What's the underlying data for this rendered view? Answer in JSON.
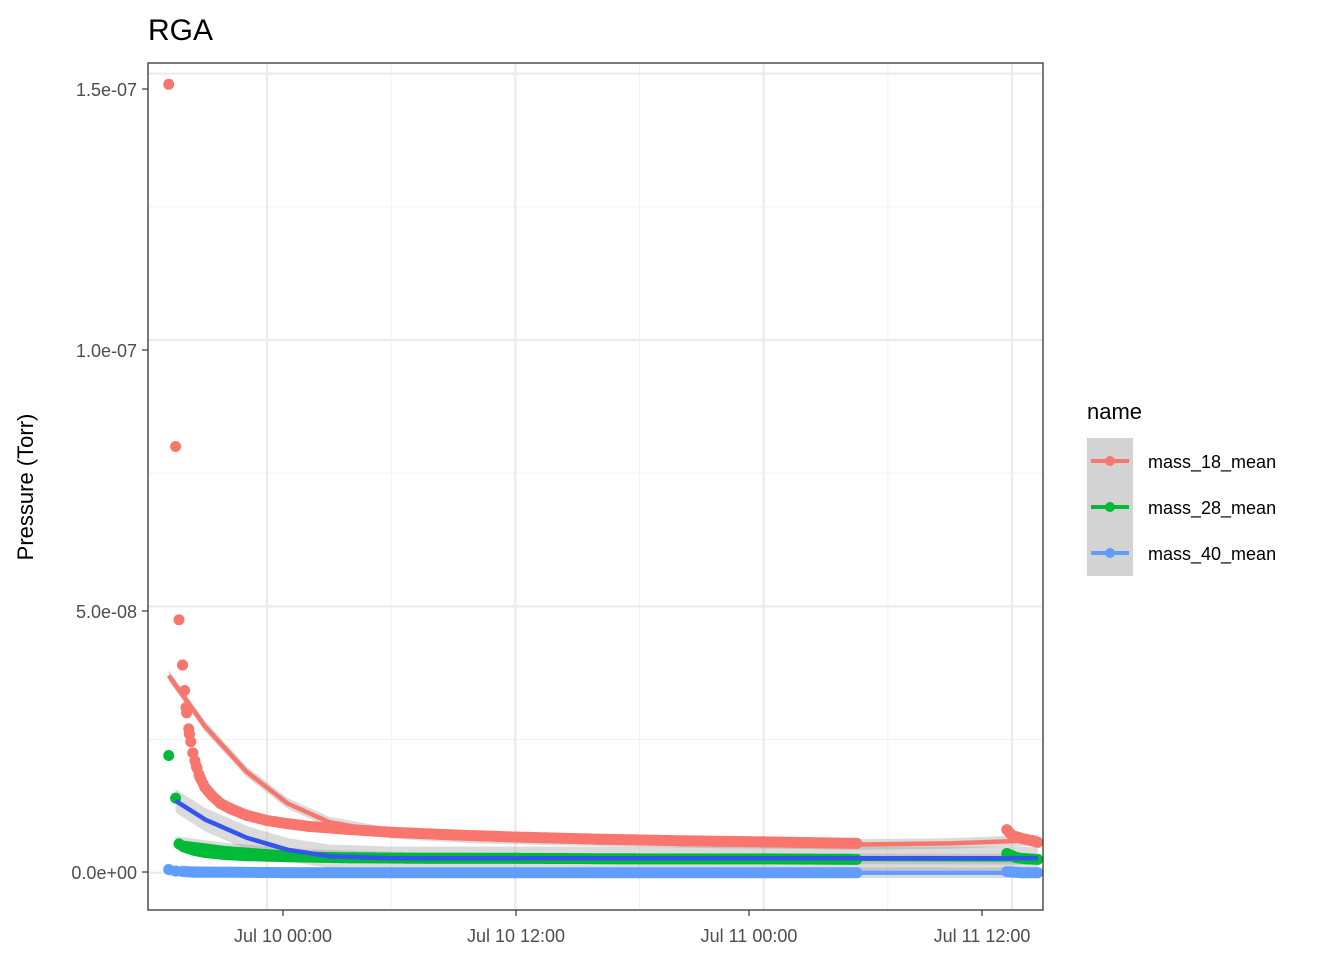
{
  "chart_data": {
    "type": "scatter",
    "title": "RGA",
    "xlabel": "",
    "ylabel": "Pressure (Torr)",
    "x_axis": {
      "type": "datetime",
      "range": [
        "2024-07-09 18:15",
        "2024-07-11 13:30"
      ],
      "ticks": [
        "Jul 10 00:00",
        "Jul 10 12:00",
        "Jul 11 00:00",
        "Jul 11 12:00"
      ]
    },
    "y_axis": {
      "range": [
        -7e-09,
        1.52e-07
      ],
      "ticks": [
        "0.0e+00",
        "5.0e-08",
        "1.0e-07",
        "1.5e-07"
      ]
    },
    "grid": true,
    "legend": {
      "title": "name",
      "position": "right"
    },
    "series": [
      {
        "name": "mass_18_mean",
        "color": "#F8766D",
        "points": [
          [
            "2024-07-09 19:15",
            1.48e-07
          ],
          [
            "2024-07-09 19:35",
            8e-08
          ],
          [
            "2024-07-09 19:45",
            4.75e-08
          ],
          [
            "2024-07-09 19:55",
            3.9e-08
          ],
          [
            "2024-07-09 20:05",
            3.1e-08
          ],
          [
            "2024-07-09 20:15",
            2.6e-08
          ],
          [
            "2024-07-09 20:25",
            2.25e-08
          ],
          [
            "2024-07-09 20:35",
            2e-08
          ],
          [
            "2024-07-09 20:45",
            1.8e-08
          ],
          [
            "2024-07-09 21:00",
            1.6e-08
          ],
          [
            "2024-07-09 21:20",
            1.45e-08
          ],
          [
            "2024-07-09 21:45",
            1.3e-08
          ],
          [
            "2024-07-09 22:15",
            1.2e-08
          ],
          [
            "2024-07-09 23:00",
            1.08e-08
          ],
          [
            "2024-07-10 00:00",
            9.8e-09
          ],
          [
            "2024-07-10 01:00",
            9.2e-09
          ],
          [
            "2024-07-10 02:00",
            8.7e-09
          ],
          [
            "2024-07-10 04:00",
            8.1e-09
          ],
          [
            "2024-07-10 06:00",
            7.6e-09
          ],
          [
            "2024-07-10 09:00",
            7.1e-09
          ],
          [
            "2024-07-10 12:00",
            6.7e-09
          ],
          [
            "2024-07-10 16:00",
            6.3e-09
          ],
          [
            "2024-07-10 20:00",
            6e-09
          ],
          [
            "2024-07-11 00:00",
            5.8e-09
          ],
          [
            "2024-07-11 04:30",
            5.5e-09
          ],
          [
            "2024-07-11 11:45",
            8.1e-09
          ],
          [
            "2024-07-11 12:00",
            7e-09
          ],
          [
            "2024-07-11 12:30",
            6.4e-09
          ],
          [
            "2024-07-11 13:00",
            6e-09
          ],
          [
            "2024-07-11 13:15",
            5.7e-09
          ]
        ],
        "trend": [
          [
            "2024-07-09 19:15",
            3.7e-08
          ],
          [
            "2024-07-09 21:00",
            2.75e-08
          ],
          [
            "2024-07-09 23:00",
            1.9e-08
          ],
          [
            "2024-07-10 01:00",
            1.3e-08
          ],
          [
            "2024-07-10 03:00",
            9.5e-09
          ],
          [
            "2024-07-10 06:00",
            7.4e-09
          ],
          [
            "2024-07-10 10:00",
            6.5e-09
          ],
          [
            "2024-07-10 16:00",
            6e-09
          ],
          [
            "2024-07-10 22:00",
            5.6e-09
          ],
          [
            "2024-07-11 04:30",
            5.3e-09
          ],
          [
            "2024-07-11 09:00",
            5.5e-09
          ],
          [
            "2024-07-11 13:15",
            6.1e-09
          ]
        ]
      },
      {
        "name": "mass_28_mean",
        "color": "#00BA38",
        "points": [
          [
            "2024-07-09 19:15",
            2.2e-08
          ],
          [
            "2024-07-09 19:35",
            1.4e-08
          ],
          [
            "2024-07-09 19:45",
            5.4e-09
          ],
          [
            "2024-07-09 20:00",
            4.8e-09
          ],
          [
            "2024-07-09 20:30",
            4.2e-09
          ],
          [
            "2024-07-09 21:00",
            3.8e-09
          ],
          [
            "2024-07-09 22:00",
            3.4e-09
          ],
          [
            "2024-07-09 23:00",
            3.2e-09
          ],
          [
            "2024-07-10 01:00",
            3e-09
          ],
          [
            "2024-07-10 04:00",
            2.8e-09
          ],
          [
            "2024-07-10 08:00",
            2.7e-09
          ],
          [
            "2024-07-10 12:00",
            2.7e-09
          ],
          [
            "2024-07-10 18:00",
            2.6e-09
          ],
          [
            "2024-07-11 00:00",
            2.6e-09
          ],
          [
            "2024-07-11 04:30",
            2.5e-09
          ],
          [
            "2024-07-11 11:45",
            3.6e-09
          ],
          [
            "2024-07-11 12:15",
            2.8e-09
          ],
          [
            "2024-07-11 12:45",
            2.6e-09
          ],
          [
            "2024-07-11 13:15",
            2.5e-09
          ]
        ],
        "trend": [
          [
            "2024-07-09 19:35",
            5.8e-09
          ],
          [
            "2024-07-09 22:00",
            4.6e-09
          ],
          [
            "2024-07-10 02:00",
            3.4e-09
          ],
          [
            "2024-07-10 06:00",
            2.9e-09
          ],
          [
            "2024-07-10 12:00",
            2.7e-09
          ],
          [
            "2024-07-10 20:00",
            2.6e-09
          ],
          [
            "2024-07-11 04:30",
            2.6e-09
          ],
          [
            "2024-07-11 13:15",
            2.5e-09
          ]
        ]
      },
      {
        "name": "mass_40_mean",
        "color": "#619CFF",
        "points": [
          [
            "2024-07-09 19:15",
            6e-10
          ],
          [
            "2024-07-09 19:35",
            3e-10
          ],
          [
            "2024-07-09 20:30",
            1e-10
          ],
          [
            "2024-07-09 22:00",
            1e-10
          ],
          [
            "2024-07-10 01:00",
            0.0
          ],
          [
            "2024-07-10 06:00",
            0.0
          ],
          [
            "2024-07-10 12:00",
            0.0
          ],
          [
            "2024-07-10 18:00",
            0.0
          ],
          [
            "2024-07-11 00:00",
            0.0
          ],
          [
            "2024-07-11 04:30",
            0.0
          ],
          [
            "2024-07-11 11:45",
            2e-10
          ],
          [
            "2024-07-11 12:30",
            0.0
          ],
          [
            "2024-07-11 13:15",
            0.0
          ]
        ],
        "trend": [
          [
            "2024-07-09 19:15",
            4e-10
          ],
          [
            "2024-07-09 23:00",
            1e-10
          ],
          [
            "2024-07-10 06:00",
            0.0
          ],
          [
            "2024-07-10 16:00",
            0.0
          ],
          [
            "2024-07-11 04:30",
            0.0
          ],
          [
            "2024-07-11 13:15",
            0.0
          ]
        ]
      },
      {
        "name": "",
        "color": "#3355EE",
        "points": [],
        "trend": [
          [
            "2024-07-09 19:35",
            1.35e-08
          ],
          [
            "2024-07-09 21:00",
            1e-08
          ],
          [
            "2024-07-09 23:00",
            6.6e-09
          ],
          [
            "2024-07-10 01:00",
            4.3e-09
          ],
          [
            "2024-07-10 03:00",
            3.1e-09
          ],
          [
            "2024-07-10 06:00",
            2.7e-09
          ],
          [
            "2024-07-10 12:00",
            2.7e-09
          ],
          [
            "2024-07-10 20:00",
            2.7e-09
          ],
          [
            "2024-07-11 04:30",
            2.7e-09
          ],
          [
            "2024-07-11 13:15",
            2.7e-09
          ]
        ]
      }
    ]
  }
}
